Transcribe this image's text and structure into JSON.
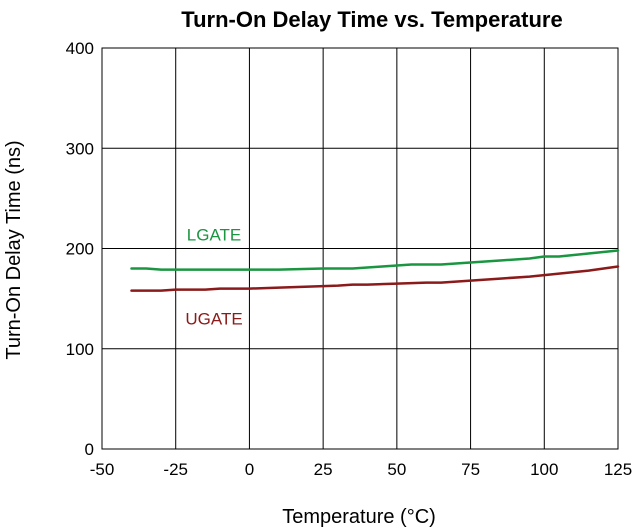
{
  "chart_data": {
    "type": "line",
    "title": "Turn-On Delay Time vs. Temperature",
    "xlabel": "Temperature (°C)",
    "ylabel": "Turn-On Delay Time (ns)",
    "xlim": [
      -50,
      125
    ],
    "ylim": [
      0,
      400
    ],
    "xticks": [
      -50,
      -25,
      0,
      25,
      50,
      75,
      100,
      125
    ],
    "yticks": [
      0,
      100,
      200,
      300,
      400
    ],
    "xtick_labels": [
      "-50",
      "-25",
      "0",
      "25",
      "50",
      "75",
      "100",
      "125"
    ],
    "ytick_labels": [
      "0",
      "100",
      "200",
      "300",
      "400"
    ],
    "grid": true,
    "series": [
      {
        "name": "LGATE",
        "color": "#1a9641",
        "x": [
          -40,
          -35,
          -30,
          -25,
          -15,
          0,
          10,
          25,
          30,
          35,
          45,
          55,
          60,
          65,
          75,
          85,
          95,
          100,
          105,
          115,
          125
        ],
        "y": [
          180,
          180,
          179,
          179,
          179,
          179,
          179,
          180,
          180,
          180,
          182,
          184,
          184,
          184,
          186,
          188,
          190,
          192,
          192,
          195,
          198
        ]
      },
      {
        "name": "UGATE",
        "color": "#8b1a1a",
        "x": [
          -40,
          -35,
          -30,
          -25,
          -15,
          -10,
          0,
          10,
          20,
          30,
          35,
          40,
          50,
          60,
          65,
          75,
          85,
          95,
          105,
          115,
          125
        ],
        "y": [
          158,
          158,
          158,
          159,
          159,
          160,
          160,
          161,
          162,
          163,
          164,
          164,
          165,
          166,
          166,
          168,
          170,
          172,
          175,
          178,
          182
        ]
      }
    ],
    "annotations": [
      {
        "text": "LGATE",
        "series": "LGATE",
        "x": -12,
        "y": 210
      },
      {
        "text": "UGATE",
        "series": "UGATE",
        "x": -12,
        "y": 126
      }
    ]
  }
}
